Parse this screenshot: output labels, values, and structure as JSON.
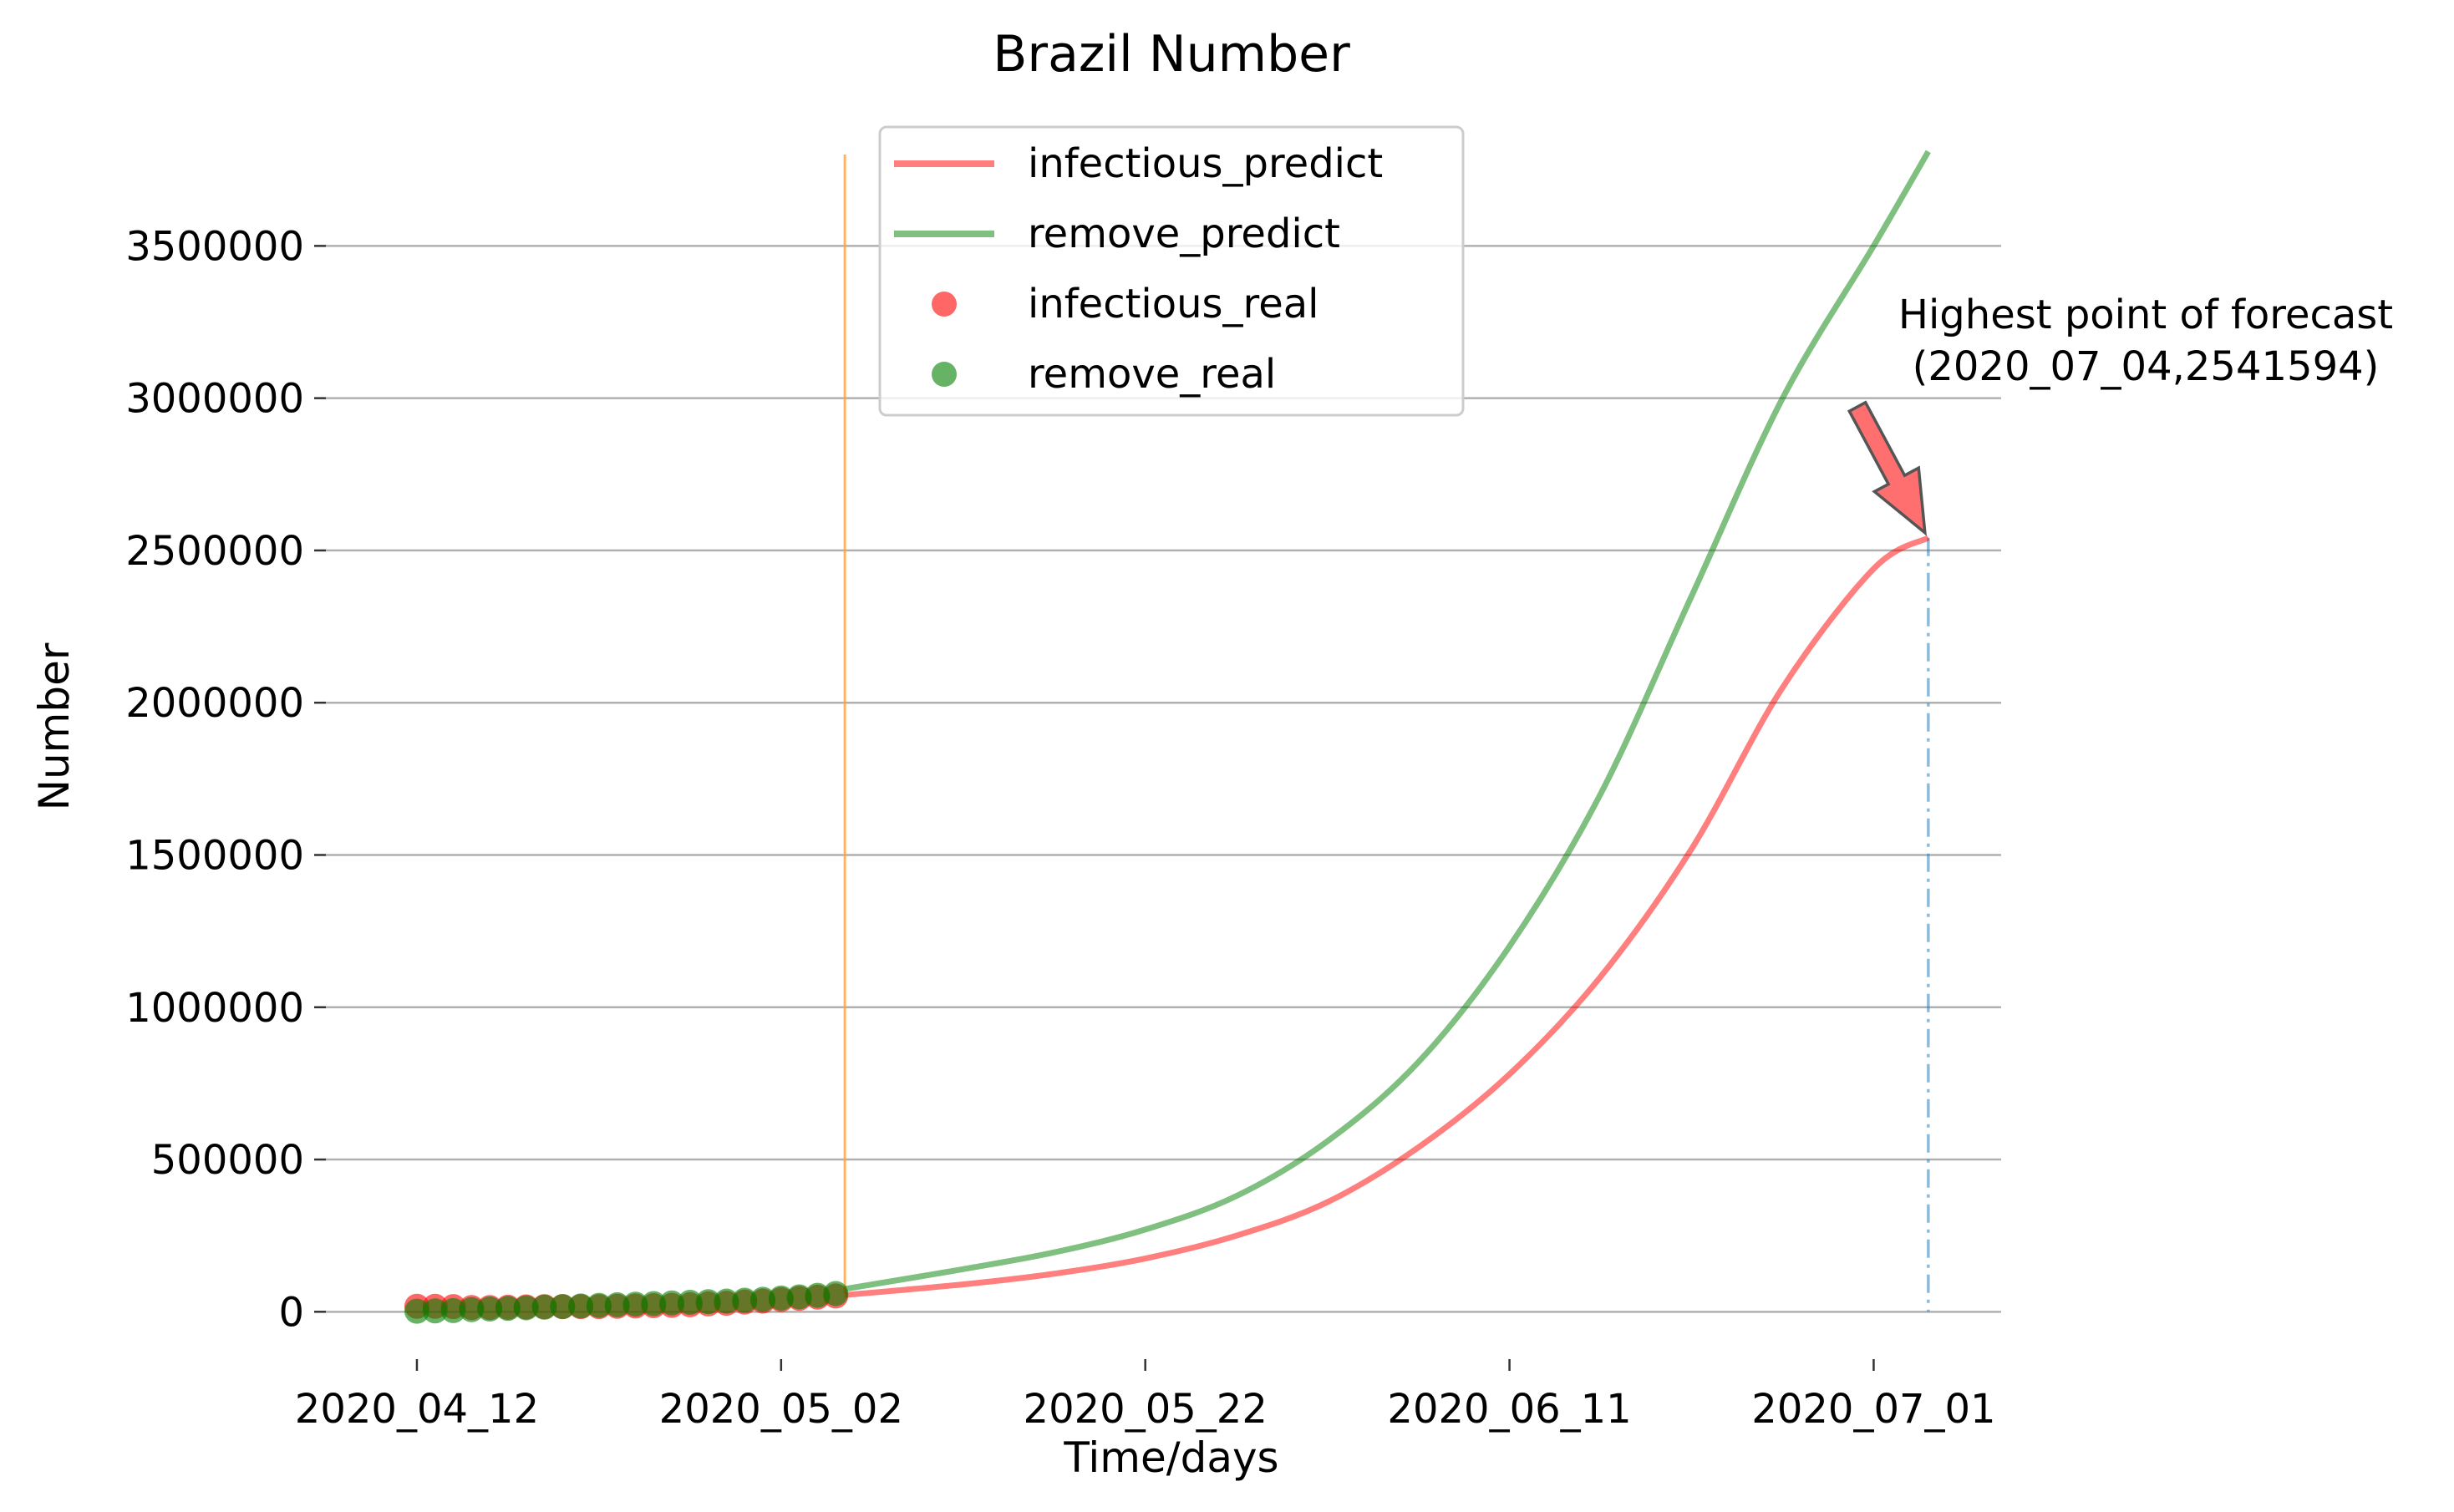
{
  "chart_data": {
    "type": "line",
    "title": "Brazil Number",
    "xlabel": "Time/days",
    "ylabel": "Number",
    "x_start": "2020_04_12",
    "x_ticks": [
      {
        "day": 0,
        "label": "2020_04_12"
      },
      {
        "day": 20,
        "label": "2020_05_02"
      },
      {
        "day": 40,
        "label": "2020_05_22"
      },
      {
        "day": 60,
        "label": "2020_06_11"
      },
      {
        "day": 80,
        "label": "2020_07_01"
      }
    ],
    "y_ticks": [
      0,
      500000,
      1000000,
      1500000,
      2000000,
      2500000,
      3000000,
      3500000
    ],
    "ylim": [
      -150000,
      3800000
    ],
    "xlim": [
      -5,
      87
    ],
    "grid": "horizontal",
    "legend_position": "upper-center",
    "split_day": 23.5,
    "forecast_end_day": 83,
    "series": [
      {
        "name": "infectious_predict",
        "kind": "line",
        "color": "#ff0000",
        "x": [
          23.5,
          30,
          35,
          40,
          45,
          50,
          55,
          60,
          65,
          70,
          75,
          80,
          83
        ],
        "values": [
          55000,
          90000,
          125000,
          175000,
          250000,
          360000,
          540000,
          780000,
          1100000,
          1520000,
          2050000,
          2440000,
          2541594
        ]
      },
      {
        "name": "remove_predict",
        "kind": "line",
        "color": "#008000",
        "x": [
          23.5,
          30,
          35,
          40,
          45,
          50,
          55,
          60,
          65,
          70,
          75,
          80,
          83
        ],
        "values": [
          75000,
          140000,
          195000,
          270000,
          380000,
          560000,
          820000,
          1200000,
          1700000,
          2350000,
          3000000,
          3500000,
          3810000
        ]
      },
      {
        "name": "infectious_real",
        "kind": "scatter",
        "color": "#ff0000",
        "x": [
          0,
          1,
          2,
          3,
          4,
          5,
          6,
          7,
          8,
          9,
          10,
          11,
          12,
          13,
          14,
          15,
          16,
          17,
          18,
          19,
          20,
          21,
          22,
          23
        ],
        "values": [
          18000,
          18000,
          17000,
          14000,
          14000,
          15000,
          16000,
          17000,
          17000,
          17000,
          17000,
          18000,
          19000,
          20000,
          21000,
          23000,
          26000,
          28000,
          32000,
          35000,
          40000,
          44000,
          48000,
          52000
        ]
      },
      {
        "name": "remove_real",
        "kind": "scatter",
        "color": "#008000",
        "x": [
          0,
          1,
          2,
          3,
          4,
          5,
          6,
          7,
          8,
          9,
          10,
          11,
          12,
          13,
          14,
          15,
          16,
          17,
          18,
          19,
          20,
          21,
          22,
          23
        ],
        "values": [
          2000,
          3000,
          4000,
          7000,
          9000,
          11000,
          13000,
          15000,
          17000,
          19000,
          21000,
          23000,
          25000,
          27000,
          29000,
          31000,
          33000,
          35000,
          38000,
          41000,
          45000,
          49000,
          54000,
          60000
        ]
      }
    ],
    "annotation": {
      "line1": "Highest point of forecast",
      "line2": "(2020_07_04,2541594)",
      "target_day": 83,
      "target_value": 2541594
    },
    "colors": {
      "grid": "#b0b0b0",
      "split_line": "#ffa040",
      "forecast_drop_line": "#1f77b4",
      "arrow_fill": "#ff6f6f",
      "arrow_edge": "#555555"
    }
  }
}
